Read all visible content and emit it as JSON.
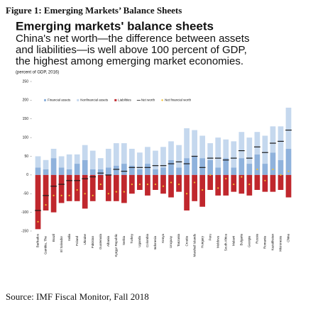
{
  "figure_label": "Figure 1:  Emerging Markets’ Balance Sheets",
  "source": "Source: IMF Fiscal Monitor, Fall 2018",
  "chart_data": {
    "type": "bar",
    "title": "Emerging markets' balance sheets",
    "subtitle": [
      "China's net worth—the difference between assets",
      "and liabilities—is well above 100 percent of GDP,",
      "the highest among emerging market economies."
    ],
    "note": "(percent of GDP, 2016)",
    "categories": [
      "Barbados",
      "Gambia, The",
      "Brazil",
      "El Salvador",
      "India",
      "Poland",
      "Ukraine",
      "Pakistan",
      "Guatemala",
      "Albania",
      "Kyrgyz Republic",
      "Serbia",
      "Turkey",
      "Uganda",
      "Colombia",
      "Indonesia",
      "Kenya",
      "Uruguay",
      "Tanzania",
      "Croatia",
      "Marshall Islands",
      "Hungary",
      "Peru",
      "Moldova",
      "South Africa",
      "Malawi",
      "Bulgaria",
      "Georgia",
      "Russia",
      "Romania",
      "Kazakhstan",
      "Micronesia",
      "China"
    ],
    "series": [
      {
        "name": "Financial assets",
        "color": "#8fb2dc",
        "values": [
          20,
          15,
          45,
          20,
          15,
          30,
          40,
          15,
          15,
          20,
          25,
          30,
          25,
          15,
          30,
          15,
          20,
          40,
          20,
          45,
          50,
          45,
          40,
          20,
          45,
          20,
          45,
          30,
          55,
          30,
          60,
          40,
          70
        ]
      },
      {
        "name": "Nonfinancial assets",
        "color": "#c5d8ee",
        "values": [
          30,
          25,
          25,
          30,
          40,
          25,
          40,
          50,
          30,
          50,
          60,
          55,
          45,
          45,
          45,
          50,
          55,
          50,
          60,
          80,
          70,
          60,
          45,
          80,
          50,
          70,
          70,
          70,
          60,
          75,
          70,
          90,
          110
        ]
      },
      {
        "name": "Liabilities",
        "color": "#c0272d",
        "values": [
          -145,
          -95,
          -100,
          -75,
          -70,
          -70,
          -90,
          -70,
          -40,
          -70,
          -70,
          -75,
          -50,
          -40,
          -55,
          -40,
          -50,
          -60,
          -45,
          -95,
          -70,
          -85,
          -40,
          -55,
          -55,
          -45,
          -50,
          -55,
          -40,
          -45,
          -45,
          -40,
          -60
        ]
      },
      {
        "name": "Net worth",
        "color": "#1a1a1a",
        "values": [
          -95,
          -55,
          -30,
          -25,
          -15,
          -15,
          -10,
          -5,
          5,
          0,
          15,
          10,
          20,
          20,
          20,
          25,
          25,
          30,
          35,
          30,
          50,
          20,
          45,
          45,
          40,
          45,
          65,
          45,
          75,
          60,
          85,
          90,
          120
        ]
      },
      {
        "name": "Net financial worth",
        "color": "#f2c12e",
        "values": [
          -125,
          -80,
          -55,
          -55,
          -55,
          -40,
          -50,
          -55,
          -25,
          -50,
          -45,
          -45,
          -25,
          -25,
          -25,
          -25,
          -30,
          -20,
          -25,
          -50,
          -20,
          -40,
          0,
          -35,
          -10,
          -25,
          -5,
          -25,
          15,
          -15,
          15,
          0,
          10
        ]
      }
    ],
    "ylim": [
      -150,
      250
    ],
    "yticks": [
      -150,
      -100,
      -50,
      0,
      50,
      100,
      150,
      200,
      250
    ]
  }
}
